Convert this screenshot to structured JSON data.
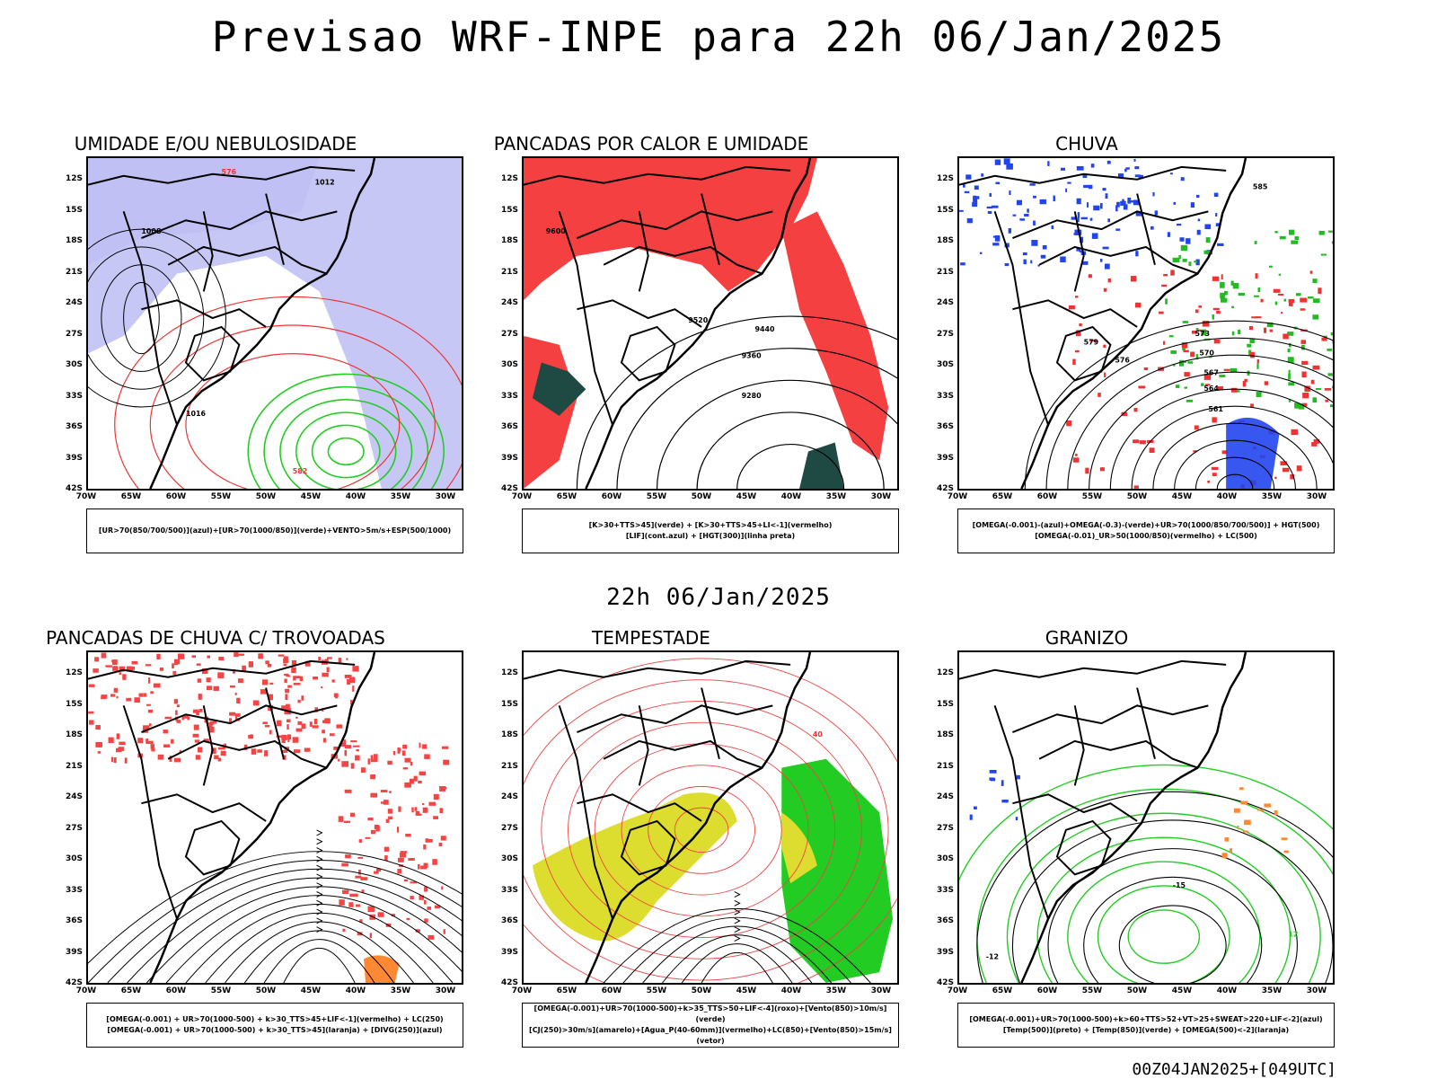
{
  "main_title": "Previsao WRF-INPE  para 22h 06/Jan/2025",
  "mid_title": "22h 06/Jan/2025",
  "footer": "00Z04JAN2025+[049UTC]",
  "lat_labels": [
    "12S",
    "15S",
    "18S",
    "21S",
    "24S",
    "27S",
    "30S",
    "33S",
    "36S",
    "39S",
    "42S"
  ],
  "lon_labels": [
    "70W",
    "65W",
    "60W",
    "55W",
    "50W",
    "45W",
    "40W",
    "35W",
    "30W"
  ],
  "panels": [
    {
      "title": "UMIDADE E/OU NEBULOSIDADE",
      "legend": [
        "[UR>70(850/700/500)](azul)+[UR>70(1000/850)](verde)+VENTO>5m/s+ESP(500/1000)"
      ],
      "contour_labels": [
        "1012",
        "1008",
        "1016",
        "576",
        "582"
      ]
    },
    {
      "title": "PANCADAS POR CALOR E UMIDADE",
      "legend": [
        "[K>30+TTS>45](verde)  +  [K>30+TTS>45+LI<-1](vermelho)",
        "[LIF](cont.azul)  +  [HGT(300)](linha preta)"
      ],
      "contour_labels": [
        "9600",
        "9520",
        "9440",
        "9360",
        "9280"
      ]
    },
    {
      "title": "CHUVA",
      "legend": [
        "[OMEGA(-0.001)-(azul)+OMEGA(-0.3)-(verde)+UR>70(1000/850/700/500)]  +  HGT(500)",
        "[OMEGA(-0.01)_UR>50(1000/850)(vermelho)  +  LC(500)"
      ],
      "contour_labels": [
        "585",
        "579",
        "576",
        "573",
        "570",
        "567",
        "564",
        "561"
      ]
    },
    {
      "title": "PANCADAS DE CHUVA C/ TROVOADAS",
      "legend": [
        "[OMEGA(-0.001)  +  UR>70(1000-500)  +  k>30_TTS>45+LIF<-1](vermelho)  +  LC(250)",
        "[OMEGA(-0.001)  +  UR>70(1000-500)  +  k>30_TTS>45](laranja)  +  [DIVG(250)](azul)"
      ],
      "contour_labels": []
    },
    {
      "title": "TEMPESTADE",
      "legend": [
        "[OMEGA(-0.001)+UR>70(1000-500)+k>35_TTS>50+LIF<-4](roxo)+[Vento(850)>10m/s](verde)",
        "[CJ(250)>30m/s](amarelo)+[Agua_P(40-60mm)](vermelho)+LC(850)+[Vento(850)>15m/s](vetor)"
      ],
      "contour_labels": [
        "40"
      ]
    },
    {
      "title": "GRANIZO",
      "legend": [
        "[OMEGA(-0.001)+UR>70(1000-500)+k>60+TTS>52+VT>25+SWEAT>220+LIF<-2](azul)",
        "[Temp(500)](preto)  +  [Temp(850)](verde)  +  [OMEGA(500)<-2](laranja)"
      ],
      "contour_labels": [
        "-12",
        "-15",
        "12"
      ]
    }
  ]
}
